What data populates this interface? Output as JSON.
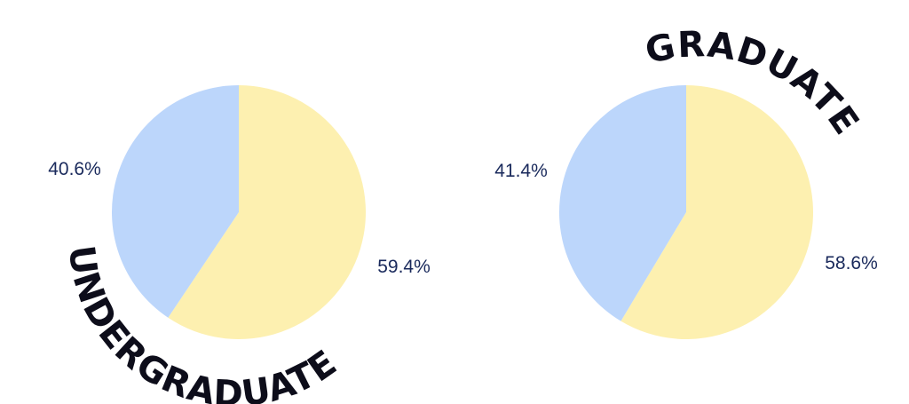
{
  "colors": {
    "blue": "#bcd6fb",
    "yellow": "#fdf0b0",
    "label": "#1a2a5c",
    "title": "#0d0d1a"
  },
  "chart_data": [
    {
      "type": "pie",
      "title": "UNDERGRADUATE",
      "slices": [
        {
          "label": "40.6%",
          "value": 40.6,
          "color": "#bcd6fb"
        },
        {
          "label": "59.4%",
          "value": 59.4,
          "color": "#fdf0b0"
        }
      ]
    },
    {
      "type": "pie",
      "title": "GRADUATE",
      "slices": [
        {
          "label": "41.4%",
          "value": 41.4,
          "color": "#bcd6fb"
        },
        {
          "label": "58.6%",
          "value": 58.6,
          "color": "#fdf0b0"
        }
      ]
    }
  ]
}
